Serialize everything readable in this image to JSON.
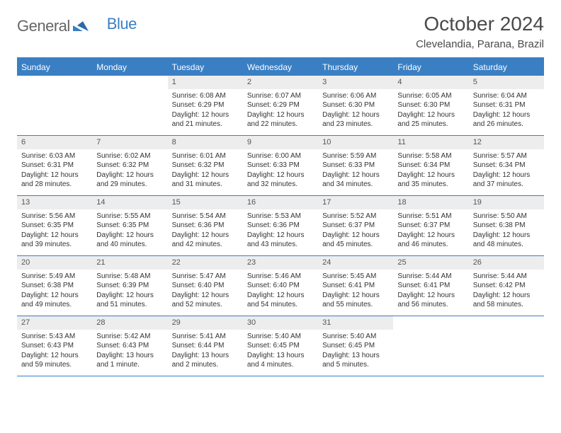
{
  "brand": {
    "part1": "General",
    "part2": "Blue"
  },
  "title": "October 2024",
  "location": "Clevelandia, Parana, Brazil",
  "colors": {
    "accent": "#3a7fc4",
    "day_bg": "#ededed",
    "text": "#333333",
    "border": "#3a7fc4"
  },
  "weekdays": [
    "Sunday",
    "Monday",
    "Tuesday",
    "Wednesday",
    "Thursday",
    "Friday",
    "Saturday"
  ],
  "weeks": [
    [
      {
        "blank": true
      },
      {
        "blank": true
      },
      {
        "day": "1",
        "sunrise": "Sunrise: 6:08 AM",
        "sunset": "Sunset: 6:29 PM",
        "daylight": "Daylight: 12 hours and 21 minutes."
      },
      {
        "day": "2",
        "sunrise": "Sunrise: 6:07 AM",
        "sunset": "Sunset: 6:29 PM",
        "daylight": "Daylight: 12 hours and 22 minutes."
      },
      {
        "day": "3",
        "sunrise": "Sunrise: 6:06 AM",
        "sunset": "Sunset: 6:30 PM",
        "daylight": "Daylight: 12 hours and 23 minutes."
      },
      {
        "day": "4",
        "sunrise": "Sunrise: 6:05 AM",
        "sunset": "Sunset: 6:30 PM",
        "daylight": "Daylight: 12 hours and 25 minutes."
      },
      {
        "day": "5",
        "sunrise": "Sunrise: 6:04 AM",
        "sunset": "Sunset: 6:31 PM",
        "daylight": "Daylight: 12 hours and 26 minutes."
      }
    ],
    [
      {
        "day": "6",
        "sunrise": "Sunrise: 6:03 AM",
        "sunset": "Sunset: 6:31 PM",
        "daylight": "Daylight: 12 hours and 28 minutes."
      },
      {
        "day": "7",
        "sunrise": "Sunrise: 6:02 AM",
        "sunset": "Sunset: 6:32 PM",
        "daylight": "Daylight: 12 hours and 29 minutes."
      },
      {
        "day": "8",
        "sunrise": "Sunrise: 6:01 AM",
        "sunset": "Sunset: 6:32 PM",
        "daylight": "Daylight: 12 hours and 31 minutes."
      },
      {
        "day": "9",
        "sunrise": "Sunrise: 6:00 AM",
        "sunset": "Sunset: 6:33 PM",
        "daylight": "Daylight: 12 hours and 32 minutes."
      },
      {
        "day": "10",
        "sunrise": "Sunrise: 5:59 AM",
        "sunset": "Sunset: 6:33 PM",
        "daylight": "Daylight: 12 hours and 34 minutes."
      },
      {
        "day": "11",
        "sunrise": "Sunrise: 5:58 AM",
        "sunset": "Sunset: 6:34 PM",
        "daylight": "Daylight: 12 hours and 35 minutes."
      },
      {
        "day": "12",
        "sunrise": "Sunrise: 5:57 AM",
        "sunset": "Sunset: 6:34 PM",
        "daylight": "Daylight: 12 hours and 37 minutes."
      }
    ],
    [
      {
        "day": "13",
        "sunrise": "Sunrise: 5:56 AM",
        "sunset": "Sunset: 6:35 PM",
        "daylight": "Daylight: 12 hours and 39 minutes."
      },
      {
        "day": "14",
        "sunrise": "Sunrise: 5:55 AM",
        "sunset": "Sunset: 6:35 PM",
        "daylight": "Daylight: 12 hours and 40 minutes."
      },
      {
        "day": "15",
        "sunrise": "Sunrise: 5:54 AM",
        "sunset": "Sunset: 6:36 PM",
        "daylight": "Daylight: 12 hours and 42 minutes."
      },
      {
        "day": "16",
        "sunrise": "Sunrise: 5:53 AM",
        "sunset": "Sunset: 6:36 PM",
        "daylight": "Daylight: 12 hours and 43 minutes."
      },
      {
        "day": "17",
        "sunrise": "Sunrise: 5:52 AM",
        "sunset": "Sunset: 6:37 PM",
        "daylight": "Daylight: 12 hours and 45 minutes."
      },
      {
        "day": "18",
        "sunrise": "Sunrise: 5:51 AM",
        "sunset": "Sunset: 6:37 PM",
        "daylight": "Daylight: 12 hours and 46 minutes."
      },
      {
        "day": "19",
        "sunrise": "Sunrise: 5:50 AM",
        "sunset": "Sunset: 6:38 PM",
        "daylight": "Daylight: 12 hours and 48 minutes."
      }
    ],
    [
      {
        "day": "20",
        "sunrise": "Sunrise: 5:49 AM",
        "sunset": "Sunset: 6:38 PM",
        "daylight": "Daylight: 12 hours and 49 minutes."
      },
      {
        "day": "21",
        "sunrise": "Sunrise: 5:48 AM",
        "sunset": "Sunset: 6:39 PM",
        "daylight": "Daylight: 12 hours and 51 minutes."
      },
      {
        "day": "22",
        "sunrise": "Sunrise: 5:47 AM",
        "sunset": "Sunset: 6:40 PM",
        "daylight": "Daylight: 12 hours and 52 minutes."
      },
      {
        "day": "23",
        "sunrise": "Sunrise: 5:46 AM",
        "sunset": "Sunset: 6:40 PM",
        "daylight": "Daylight: 12 hours and 54 minutes."
      },
      {
        "day": "24",
        "sunrise": "Sunrise: 5:45 AM",
        "sunset": "Sunset: 6:41 PM",
        "daylight": "Daylight: 12 hours and 55 minutes."
      },
      {
        "day": "25",
        "sunrise": "Sunrise: 5:44 AM",
        "sunset": "Sunset: 6:41 PM",
        "daylight": "Daylight: 12 hours and 56 minutes."
      },
      {
        "day": "26",
        "sunrise": "Sunrise: 5:44 AM",
        "sunset": "Sunset: 6:42 PM",
        "daylight": "Daylight: 12 hours and 58 minutes."
      }
    ],
    [
      {
        "day": "27",
        "sunrise": "Sunrise: 5:43 AM",
        "sunset": "Sunset: 6:43 PM",
        "daylight": "Daylight: 12 hours and 59 minutes."
      },
      {
        "day": "28",
        "sunrise": "Sunrise: 5:42 AM",
        "sunset": "Sunset: 6:43 PM",
        "daylight": "Daylight: 13 hours and 1 minute."
      },
      {
        "day": "29",
        "sunrise": "Sunrise: 5:41 AM",
        "sunset": "Sunset: 6:44 PM",
        "daylight": "Daylight: 13 hours and 2 minutes."
      },
      {
        "day": "30",
        "sunrise": "Sunrise: 5:40 AM",
        "sunset": "Sunset: 6:45 PM",
        "daylight": "Daylight: 13 hours and 4 minutes."
      },
      {
        "day": "31",
        "sunrise": "Sunrise: 5:40 AM",
        "sunset": "Sunset: 6:45 PM",
        "daylight": "Daylight: 13 hours and 5 minutes."
      },
      {
        "blank": true
      },
      {
        "blank": true
      }
    ]
  ]
}
